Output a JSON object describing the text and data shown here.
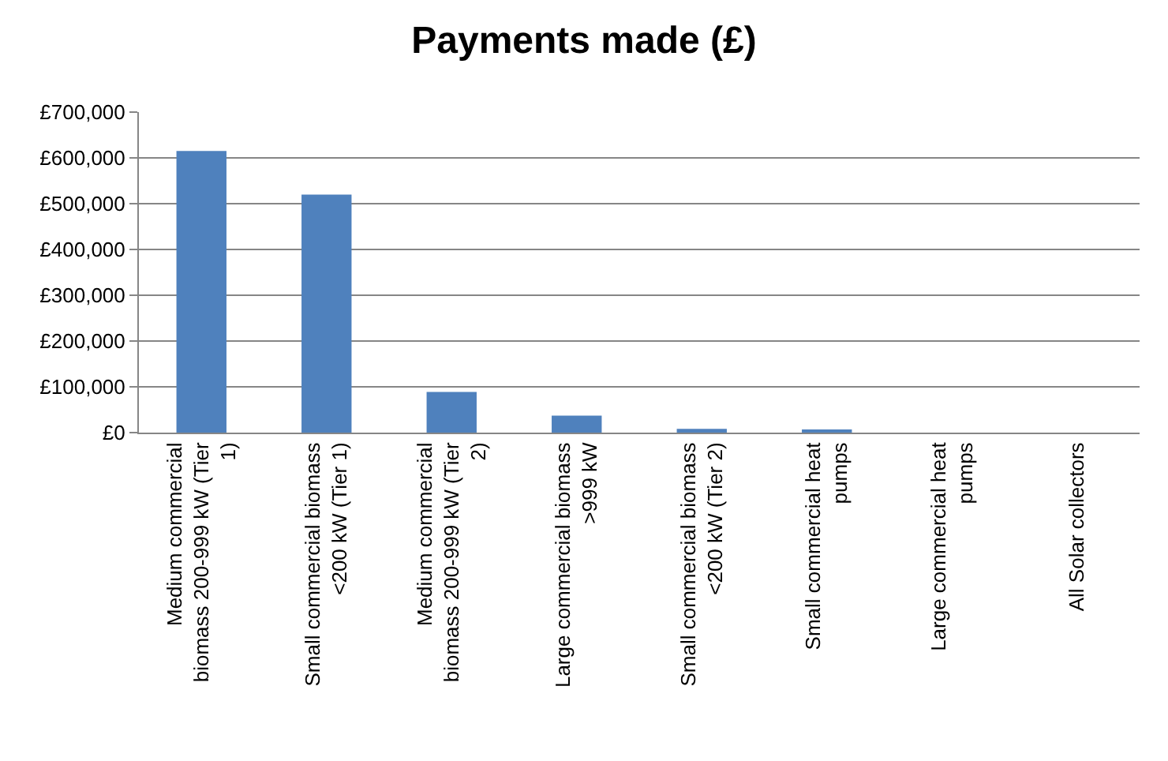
{
  "chart_data": {
    "type": "bar",
    "title": "Payments made (£)",
    "categories": [
      "Medium commercial biomass 200-999 kW (Tier 1)",
      "Small commercial biomass <200 kW (Tier 1)",
      "Medium commercial biomass 200-999 kW (Tier 2)",
      "Large commercial biomass >999 kW",
      "Small commercial biomass <200 kW (Tier 2)",
      "Small commercial heat pumps",
      "Large commercial heat pumps",
      "All Solar collectors"
    ],
    "values": [
      615000,
      520000,
      89000,
      37000,
      8000,
      4000,
      0,
      0
    ],
    "color": "#4f81bd",
    "ylim": [
      0,
      700000
    ],
    "yticks": [
      {
        "value": 0,
        "label": "£0"
      },
      {
        "value": 100000,
        "label": "£100,000"
      },
      {
        "value": 200000,
        "label": "£200,000"
      },
      {
        "value": 300000,
        "label": "£300,000"
      },
      {
        "value": 400000,
        "label": "£400,000"
      },
      {
        "value": 500000,
        "label": "£500,000"
      },
      {
        "value": 600000,
        "label": "£600,000"
      },
      {
        "value": 700000,
        "label": "£700,000"
      }
    ],
    "grid": "y",
    "legend": false
  }
}
